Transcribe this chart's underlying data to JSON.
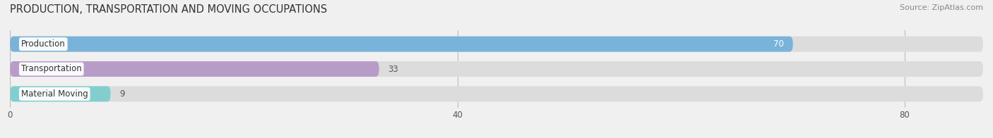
{
  "title": "PRODUCTION, TRANSPORTATION AND MOVING OCCUPATIONS",
  "source": "Source: ZipAtlas.com",
  "categories": [
    "Production",
    "Transportation",
    "Material Moving"
  ],
  "values": [
    70,
    33,
    9
  ],
  "bar_colors": [
    "#7ab3d9",
    "#b89cc8",
    "#82cece"
  ],
  "bar_label_colors": [
    "#ffffff",
    "#555555",
    "#555555"
  ],
  "xlim": [
    0,
    87
  ],
  "xticks": [
    0,
    40,
    80
  ],
  "background_color": "#f0f0f0",
  "bar_background_color": "#dcdcdc",
  "title_fontsize": 10.5,
  "label_fontsize": 8.5,
  "value_fontsize": 8.5,
  "bar_height": 0.62,
  "bar_gap": 0.38
}
